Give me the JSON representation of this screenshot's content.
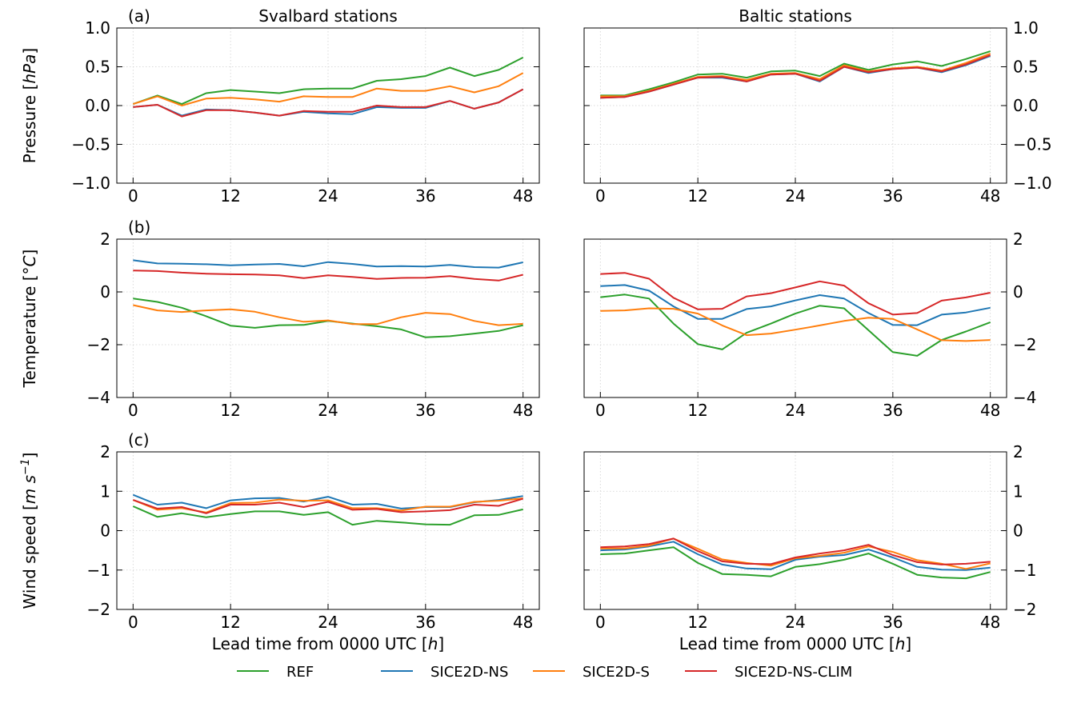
{
  "chart_data": [
    {
      "type": "line",
      "panel": "a-left",
      "panel_label": "(a)",
      "title": "Svalbard stations",
      "ylabel": "Pressure [hPa]",
      "ylabel_main": "Pressure [",
      "ylabel_unit": "hPa",
      "ylabel_close": "]",
      "xlabel": "",
      "ylim": [
        -1.0,
        1.0
      ],
      "yticks": [
        "1.0",
        "0.5",
        "0.0",
        "−0.5",
        "−1.0"
      ],
      "x": [
        0,
        3,
        6,
        9,
        12,
        15,
        18,
        21,
        24,
        27,
        30,
        33,
        36,
        39,
        42,
        45,
        48
      ],
      "series": [
        {
          "name": "REF",
          "values": [
            0.02,
            0.13,
            0.02,
            0.16,
            0.2,
            0.18,
            0.16,
            0.21,
            0.22,
            0.22,
            0.32,
            0.34,
            0.38,
            0.49,
            0.38,
            0.46,
            0.62
          ]
        },
        {
          "name": "SICE2D-NS",
          "values": [
            -0.02,
            0.01,
            -0.13,
            -0.05,
            -0.06,
            -0.09,
            -0.13,
            -0.08,
            -0.1,
            -0.11,
            -0.02,
            -0.03,
            -0.03,
            0.06,
            -0.04,
            0.04,
            0.21
          ]
        },
        {
          "name": "SICE2D-S",
          "values": [
            0.02,
            0.12,
            0.0,
            0.09,
            0.1,
            0.08,
            0.05,
            0.12,
            0.11,
            0.11,
            0.22,
            0.19,
            0.19,
            0.25,
            0.17,
            0.25,
            0.42
          ]
        },
        {
          "name": "SICE2D-NS-CLIM",
          "values": [
            -0.02,
            0.01,
            -0.14,
            -0.06,
            -0.06,
            -0.09,
            -0.13,
            -0.07,
            -0.08,
            -0.08,
            0.0,
            -0.02,
            -0.02,
            0.06,
            -0.04,
            0.04,
            0.21
          ]
        }
      ]
    },
    {
      "type": "line",
      "panel": "a-right",
      "panel_label": "",
      "title": "Baltic stations",
      "ylabel": "",
      "xlabel": "",
      "ylim": [
        -1.0,
        1.0
      ],
      "yticks": [
        "1.0",
        "0.5",
        "0.0",
        "−0.5",
        "−1.0"
      ],
      "x": [
        0,
        3,
        6,
        9,
        12,
        15,
        18,
        21,
        24,
        27,
        30,
        33,
        36,
        39,
        42,
        45,
        48
      ],
      "series": [
        {
          "name": "REF",
          "values": [
            0.13,
            0.13,
            0.21,
            0.3,
            0.4,
            0.41,
            0.36,
            0.44,
            0.45,
            0.38,
            0.54,
            0.46,
            0.53,
            0.57,
            0.51,
            0.6,
            0.7
          ]
        },
        {
          "name": "SICE2D-NS",
          "values": [
            0.1,
            0.11,
            0.18,
            0.27,
            0.36,
            0.36,
            0.31,
            0.4,
            0.41,
            0.31,
            0.5,
            0.42,
            0.47,
            0.49,
            0.43,
            0.52,
            0.64
          ]
        },
        {
          "name": "SICE2D-S",
          "values": [
            0.12,
            0.12,
            0.19,
            0.28,
            0.37,
            0.38,
            0.33,
            0.41,
            0.42,
            0.34,
            0.52,
            0.44,
            0.48,
            0.5,
            0.45,
            0.55,
            0.67
          ]
        },
        {
          "name": "SICE2D-NS-CLIM",
          "values": [
            0.1,
            0.11,
            0.18,
            0.27,
            0.36,
            0.37,
            0.31,
            0.4,
            0.41,
            0.32,
            0.5,
            0.43,
            0.47,
            0.49,
            0.44,
            0.53,
            0.65
          ]
        }
      ]
    },
    {
      "type": "line",
      "panel": "b-left",
      "panel_label": "(b)",
      "title": "",
      "ylabel": "Temperature [°C]",
      "ylabel_main": "Temperature [°",
      "ylabel_unit": "C",
      "ylabel_close": "]",
      "xlabel": "",
      "ylim": [
        -4,
        2
      ],
      "yticks": [
        "2",
        "0",
        "−2",
        "−4"
      ],
      "x": [
        0,
        3,
        6,
        9,
        12,
        15,
        18,
        21,
        24,
        27,
        30,
        33,
        36,
        39,
        42,
        45,
        48
      ],
      "series": [
        {
          "name": "REF",
          "values": [
            -0.25,
            -0.38,
            -0.6,
            -0.92,
            -1.28,
            -1.36,
            -1.26,
            -1.25,
            -1.1,
            -1.2,
            -1.3,
            -1.42,
            -1.72,
            -1.68,
            -1.58,
            -1.48,
            -1.26
          ]
        },
        {
          "name": "SICE2D-NS",
          "values": [
            1.2,
            1.08,
            1.07,
            1.05,
            1.01,
            1.04,
            1.06,
            0.97,
            1.13,
            1.06,
            0.96,
            0.98,
            0.96,
            1.02,
            0.94,
            0.92,
            1.12
          ]
        },
        {
          "name": "SICE2D-S",
          "values": [
            -0.5,
            -0.7,
            -0.76,
            -0.7,
            -0.66,
            -0.75,
            -0.96,
            -1.13,
            -1.08,
            -1.22,
            -1.22,
            -0.96,
            -0.79,
            -0.84,
            -1.1,
            -1.26,
            -1.21
          ]
        },
        {
          "name": "SICE2D-NS-CLIM",
          "values": [
            0.81,
            0.79,
            0.73,
            0.69,
            0.67,
            0.66,
            0.63,
            0.52,
            0.63,
            0.57,
            0.49,
            0.53,
            0.54,
            0.6,
            0.49,
            0.43,
            0.65
          ]
        }
      ]
    },
    {
      "type": "line",
      "panel": "b-right",
      "panel_label": "",
      "title": "",
      "ylabel": "",
      "xlabel": "",
      "ylim": [
        -4,
        2
      ],
      "yticks": [
        "2",
        "0",
        "−2",
        "−4"
      ],
      "x": [
        0,
        3,
        6,
        9,
        12,
        15,
        18,
        21,
        24,
        27,
        30,
        33,
        36,
        39,
        42,
        45,
        48
      ],
      "series": [
        {
          "name": "REF",
          "values": [
            -0.2,
            -0.1,
            -0.25,
            -1.2,
            -1.98,
            -2.18,
            -1.55,
            -1.2,
            -0.82,
            -0.52,
            -0.62,
            -1.45,
            -2.28,
            -2.42,
            -1.82,
            -1.5,
            -1.15
          ]
        },
        {
          "name": "SICE2D-NS",
          "values": [
            0.22,
            0.26,
            0.05,
            -0.55,
            -1.02,
            -1.02,
            -0.65,
            -0.55,
            -0.32,
            -0.12,
            -0.25,
            -0.8,
            -1.25,
            -1.26,
            -0.86,
            -0.78,
            -0.6
          ]
        },
        {
          "name": "SICE2D-S",
          "values": [
            -0.72,
            -0.7,
            -0.62,
            -0.64,
            -0.82,
            -1.27,
            -1.64,
            -1.58,
            -1.43,
            -1.27,
            -1.1,
            -0.98,
            -1.02,
            -1.42,
            -1.83,
            -1.86,
            -1.82
          ]
        },
        {
          "name": "SICE2D-NS-CLIM",
          "values": [
            0.68,
            0.72,
            0.5,
            -0.22,
            -0.66,
            -0.64,
            -0.17,
            -0.05,
            0.17,
            0.4,
            0.24,
            -0.43,
            -0.86,
            -0.8,
            -0.33,
            -0.21,
            -0.03
          ]
        }
      ]
    },
    {
      "type": "line",
      "panel": "c-left",
      "panel_label": "(c)",
      "title": "",
      "ylabel": "Wind speed [m s⁻¹]",
      "ylabel_main": "Wind speed [",
      "ylabel_unit": "m s",
      "ylabel_sup": "−1",
      "ylabel_close": "]",
      "xlabel": "Lead time from 0000 UTC [h]",
      "xlabel_main": "Lead time from 0000 UTC [",
      "xlabel_unit": "h",
      "xlabel_close": "]",
      "ylim": [
        -2,
        2
      ],
      "yticks": [
        "2",
        "1",
        "0",
        "−1",
        "−2"
      ],
      "xticks": [
        "0",
        "12",
        "24",
        "36",
        "48"
      ],
      "x": [
        0,
        3,
        6,
        9,
        12,
        15,
        18,
        21,
        24,
        27,
        30,
        33,
        36,
        39,
        42,
        45,
        48
      ],
      "series": [
        {
          "name": "REF",
          "values": [
            0.62,
            0.35,
            0.44,
            0.34,
            0.42,
            0.49,
            0.49,
            0.4,
            0.47,
            0.15,
            0.25,
            0.21,
            0.16,
            0.15,
            0.39,
            0.4,
            0.54
          ]
        },
        {
          "name": "SICE2D-NS",
          "values": [
            0.91,
            0.66,
            0.71,
            0.57,
            0.77,
            0.82,
            0.83,
            0.74,
            0.86,
            0.66,
            0.68,
            0.56,
            0.6,
            0.6,
            0.72,
            0.78,
            0.88
          ]
        },
        {
          "name": "SICE2D-S",
          "values": [
            0.78,
            0.53,
            0.57,
            0.46,
            0.7,
            0.71,
            0.79,
            0.76,
            0.77,
            0.57,
            0.57,
            0.51,
            0.61,
            0.61,
            0.73,
            0.76,
            0.82
          ]
        },
        {
          "name": "SICE2D-NS-CLIM",
          "values": [
            0.78,
            0.56,
            0.6,
            0.44,
            0.66,
            0.66,
            0.71,
            0.6,
            0.73,
            0.53,
            0.55,
            0.47,
            0.49,
            0.52,
            0.66,
            0.63,
            0.81
          ]
        }
      ]
    },
    {
      "type": "line",
      "panel": "c-right",
      "panel_label": "",
      "title": "",
      "ylabel": "",
      "xlabel": "Lead time from 0000 UTC [h]",
      "xlabel_main": "Lead time from 0000 UTC [",
      "xlabel_unit": "h",
      "xlabel_close": "]",
      "ylim": [
        -2,
        2
      ],
      "yticks": [
        "2",
        "1",
        "0",
        "−1",
        "−2"
      ],
      "xticks": [
        "0",
        "12",
        "24",
        "36",
        "48"
      ],
      "x": [
        0,
        3,
        6,
        9,
        12,
        15,
        18,
        21,
        24,
        27,
        30,
        33,
        36,
        39,
        42,
        45,
        48
      ],
      "series": [
        {
          "name": "REF",
          "values": [
            -0.6,
            -0.58,
            -0.5,
            -0.42,
            -0.82,
            -1.1,
            -1.12,
            -1.16,
            -0.92,
            -0.85,
            -0.74,
            -0.58,
            -0.84,
            -1.12,
            -1.19,
            -1.21,
            -1.05
          ]
        },
        {
          "name": "SICE2D-NS",
          "values": [
            -0.5,
            -0.48,
            -0.4,
            -0.28,
            -0.6,
            -0.86,
            -0.96,
            -0.98,
            -0.74,
            -0.66,
            -0.62,
            -0.48,
            -0.68,
            -0.92,
            -0.99,
            -1.0,
            -0.94
          ]
        },
        {
          "name": "SICE2D-S",
          "values": [
            -0.45,
            -0.45,
            -0.38,
            -0.2,
            -0.46,
            -0.73,
            -0.82,
            -0.89,
            -0.7,
            -0.64,
            -0.56,
            -0.4,
            -0.54,
            -0.75,
            -0.84,
            -0.97,
            -0.83
          ]
        },
        {
          "name": "SICE2D-NS-CLIM",
          "values": [
            -0.42,
            -0.4,
            -0.34,
            -0.2,
            -0.52,
            -0.78,
            -0.84,
            -0.85,
            -0.68,
            -0.58,
            -0.5,
            -0.36,
            -0.62,
            -0.8,
            -0.86,
            -0.84,
            -0.79
          ]
        }
      ]
    }
  ],
  "x_ticks": [
    "0",
    "12",
    "24",
    "36",
    "48"
  ],
  "xlim": [
    -2,
    50
  ],
  "grid": true,
  "legend": {
    "placement": "bottom-center",
    "entries": [
      "REF",
      "SICE2D-NS",
      "SICE2D-S",
      "SICE2D-NS-CLIM"
    ]
  },
  "colors": {
    "REF": "#2ca02c",
    "SICE2D-NS": "#1f77b4",
    "SICE2D-S": "#ff7f0e",
    "SICE2D-NS-CLIM": "#d62728"
  }
}
